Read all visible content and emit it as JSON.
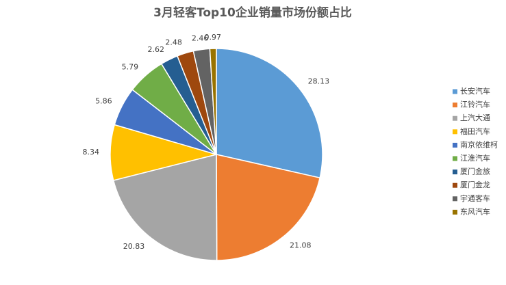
{
  "chart_data": {
    "type": "pie",
    "title": "3月轻客Top10企业销量市场份额占比",
    "categories": [
      "长安汽车",
      "江铃汽车",
      "上汽大通",
      "福田汽车",
      "南京依维柯",
      "江淮汽车",
      "厦门金旅",
      "厦门金龙",
      "宇通客车",
      "东风汽车"
    ],
    "values": [
      28.13,
      21.08,
      20.83,
      8.34,
      5.86,
      5.79,
      2.62,
      2.48,
      2.46,
      0.97
    ],
    "colors": [
      "#5b9bd5",
      "#ed7d31",
      "#a5a5a5",
      "#ffc000",
      "#4472c4",
      "#70ad47",
      "#255e91",
      "#9e480e",
      "#636363",
      "#997300"
    ],
    "legend": "right"
  }
}
